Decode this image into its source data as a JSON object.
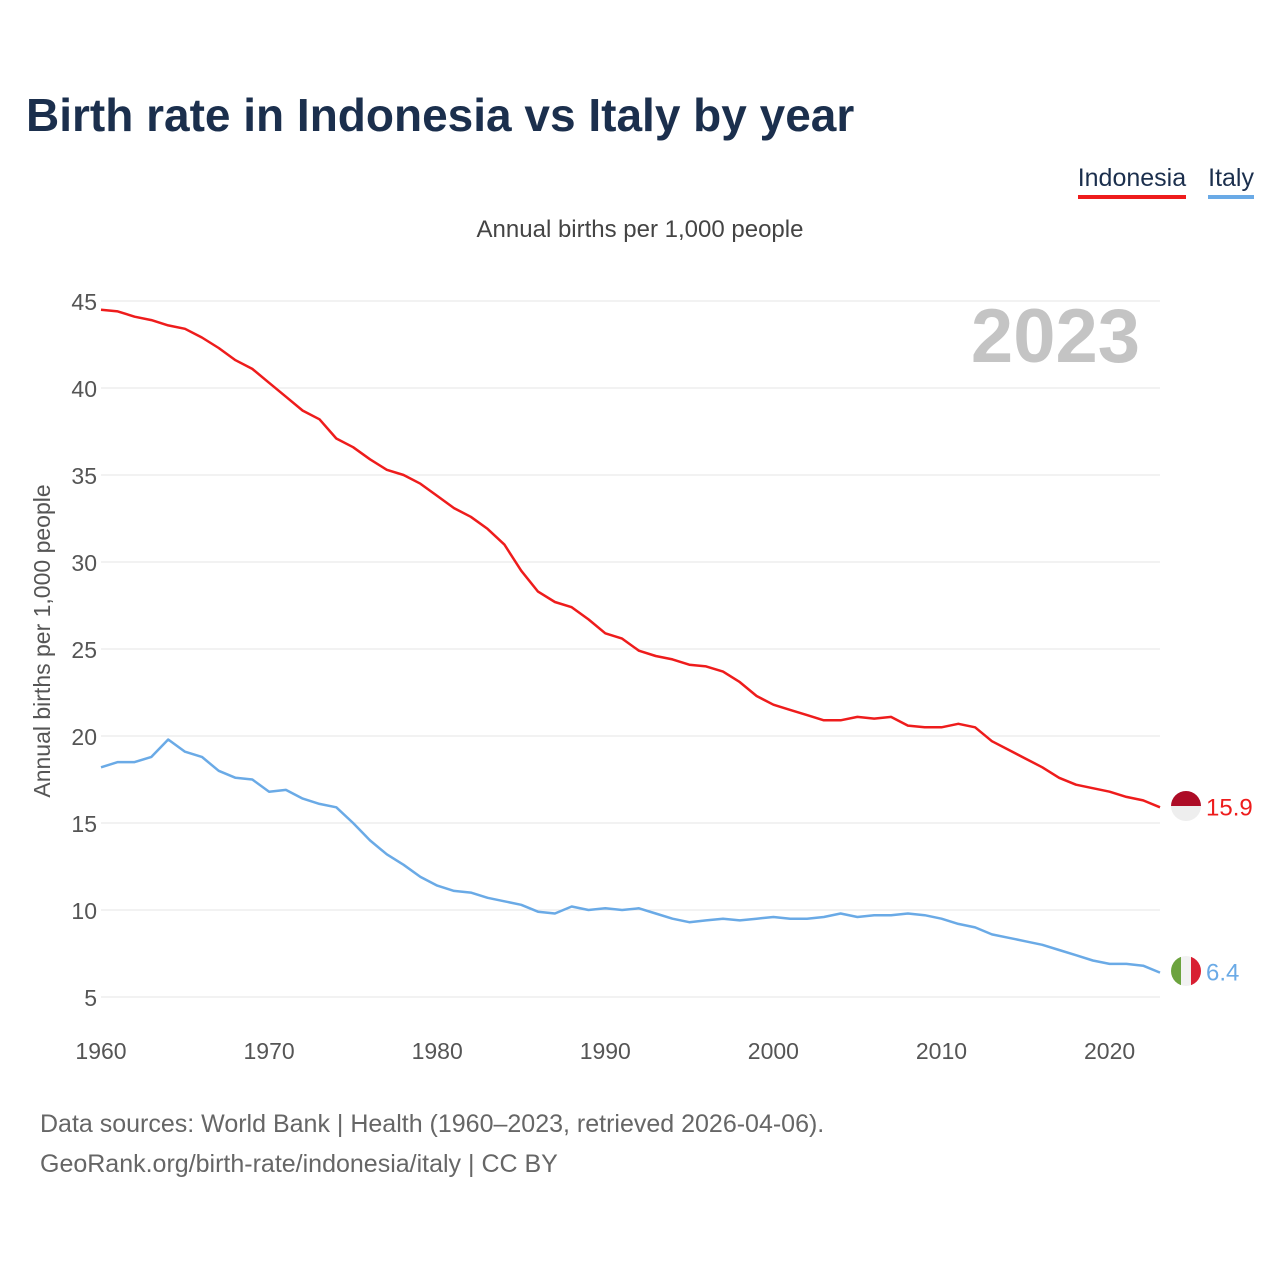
{
  "title": "Birth rate in Indonesia vs Italy by year",
  "subtitle": "Annual births per 1,000 people",
  "legend": [
    {
      "label": "Indonesia",
      "color": "#ee1c1c"
    },
    {
      "label": "Italy",
      "color": "#6aaae6"
    }
  ],
  "year_watermark": "2023",
  "footer": {
    "line1": "Data sources: World Bank | Health (1960–2023, retrieved 2026-04-06).",
    "line2": "GeoRank.org/birth-rate/indonesia/italy | CC BY"
  },
  "chart_data": {
    "type": "line",
    "title": "Birth rate in Indonesia vs Italy by year",
    "xlabel": "",
    "ylabel": "Annual births per 1,000 people",
    "xlim": [
      1960,
      2023
    ],
    "ylim": [
      3,
      45
    ],
    "x_ticks": [
      1960,
      1970,
      1980,
      1990,
      2000,
      2010,
      2020
    ],
    "y_ticks": [
      5,
      10,
      15,
      20,
      25,
      30,
      35,
      40,
      45
    ],
    "grid": true,
    "legend_position": "top-right",
    "x": [
      1960,
      1961,
      1962,
      1963,
      1964,
      1965,
      1966,
      1967,
      1968,
      1969,
      1970,
      1971,
      1972,
      1973,
      1974,
      1975,
      1976,
      1977,
      1978,
      1979,
      1980,
      1981,
      1982,
      1983,
      1984,
      1985,
      1986,
      1987,
      1988,
      1989,
      1990,
      1991,
      1992,
      1993,
      1994,
      1995,
      1996,
      1997,
      1998,
      1999,
      2000,
      2001,
      2002,
      2003,
      2004,
      2005,
      2006,
      2007,
      2008,
      2009,
      2010,
      2011,
      2012,
      2013,
      2014,
      2015,
      2016,
      2017,
      2018,
      2019,
      2020,
      2021,
      2022,
      2023
    ],
    "series": [
      {
        "name": "Indonesia",
        "color": "#ee1c1c",
        "end_label": "15.9",
        "values": [
          44.5,
          44.4,
          44.1,
          43.9,
          43.6,
          43.4,
          42.9,
          42.3,
          41.6,
          41.1,
          40.3,
          39.5,
          38.7,
          38.2,
          37.1,
          36.6,
          35.9,
          35.3,
          35.0,
          34.5,
          33.8,
          33.1,
          32.6,
          31.9,
          31.0,
          29.5,
          28.3,
          27.7,
          27.4,
          26.7,
          25.9,
          25.6,
          24.9,
          24.6,
          24.4,
          24.1,
          24.0,
          23.7,
          23.1,
          22.3,
          21.8,
          21.5,
          21.2,
          20.9,
          20.9,
          21.1,
          21.0,
          21.1,
          20.6,
          20.5,
          20.5,
          20.7,
          20.5,
          19.7,
          19.2,
          18.7,
          18.2,
          17.6,
          17.2,
          17.0,
          16.8,
          16.5,
          16.3,
          15.9
        ]
      },
      {
        "name": "Italy",
        "color": "#6aaae6",
        "end_label": "6.4",
        "values": [
          18.2,
          18.5,
          18.5,
          18.8,
          19.8,
          19.1,
          18.8,
          18.0,
          17.6,
          17.5,
          16.8,
          16.9,
          16.4,
          16.1,
          15.9,
          15.0,
          14.0,
          13.2,
          12.6,
          11.9,
          11.4,
          11.1,
          11.0,
          10.7,
          10.5,
          10.3,
          9.9,
          9.8,
          10.2,
          10.0,
          10.1,
          10.0,
          10.1,
          9.8,
          9.5,
          9.3,
          9.4,
          9.5,
          9.4,
          9.5,
          9.6,
          9.5,
          9.5,
          9.6,
          9.8,
          9.6,
          9.7,
          9.7,
          9.8,
          9.7,
          9.5,
          9.2,
          9.0,
          8.6,
          8.4,
          8.2,
          8.0,
          7.7,
          7.4,
          7.1,
          6.9,
          6.9,
          6.8,
          6.4
        ]
      }
    ]
  }
}
